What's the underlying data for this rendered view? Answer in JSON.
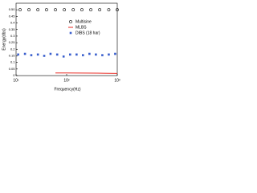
{
  "chart_data": {
    "type": "scatter",
    "xlabel": "Frequency(Hz)",
    "ylabel": "Energy(dbs)",
    "xscale": "log",
    "xlim": [
      10,
      1000
    ],
    "xticks": [
      {
        "value": 10,
        "label": "10¹"
      },
      {
        "value": 100,
        "label": "10²"
      },
      {
        "value": 1000,
        "label": "10³"
      }
    ],
    "ylim": [
      0,
      0.55
    ],
    "yticks": [
      {
        "value": 0,
        "label": "0"
      },
      {
        "value": 0.05,
        "label": "0.05"
      },
      {
        "value": 0.1,
        "label": "0.1"
      },
      {
        "value": 0.15,
        "label": "0.15"
      },
      {
        "value": 0.2,
        "label": "0.2"
      },
      {
        "value": 0.25,
        "label": "0.25"
      },
      {
        "value": 0.3,
        "label": "0.3"
      },
      {
        "value": 0.35,
        "label": "0.35"
      },
      {
        "value": 0.4,
        "label": "0.4"
      },
      {
        "value": 0.45,
        "label": "0.45"
      },
      {
        "value": 0.5,
        "label": "0.50"
      }
    ],
    "legend": "upper right",
    "series": [
      {
        "name": "Multisine",
        "color": "#000000",
        "marker": "circle",
        "x": [
          12,
          18,
          27,
          40,
          60,
          90,
          135,
          200,
          300,
          450,
          680,
          1000
        ],
        "values": [
          0.5,
          0.5,
          0.5,
          0.5,
          0.5,
          0.5,
          0.5,
          0.5,
          0.5,
          0.5,
          0.5,
          0.5
        ]
      },
      {
        "name": "MLBS",
        "color": "#e8261f",
        "marker": "line",
        "x": [
          60,
          100,
          200,
          400,
          700,
          1000
        ],
        "values": [
          0.02,
          0.02,
          0.019,
          0.018,
          0.017,
          0.016
        ]
      },
      {
        "name": "DIBS (18 har)",
        "color": "#3a5fcd",
        "marker": "square",
        "x": [
          11,
          15,
          20,
          27,
          36,
          48,
          65,
          87,
          117,
          157,
          210,
          282,
          378,
          507,
          680,
          910
        ],
        "values": [
          0.16,
          0.165,
          0.155,
          0.16,
          0.15,
          0.165,
          0.16,
          0.145,
          0.16,
          0.16,
          0.155,
          0.165,
          0.16,
          0.155,
          0.16,
          0.165
        ]
      }
    ]
  }
}
